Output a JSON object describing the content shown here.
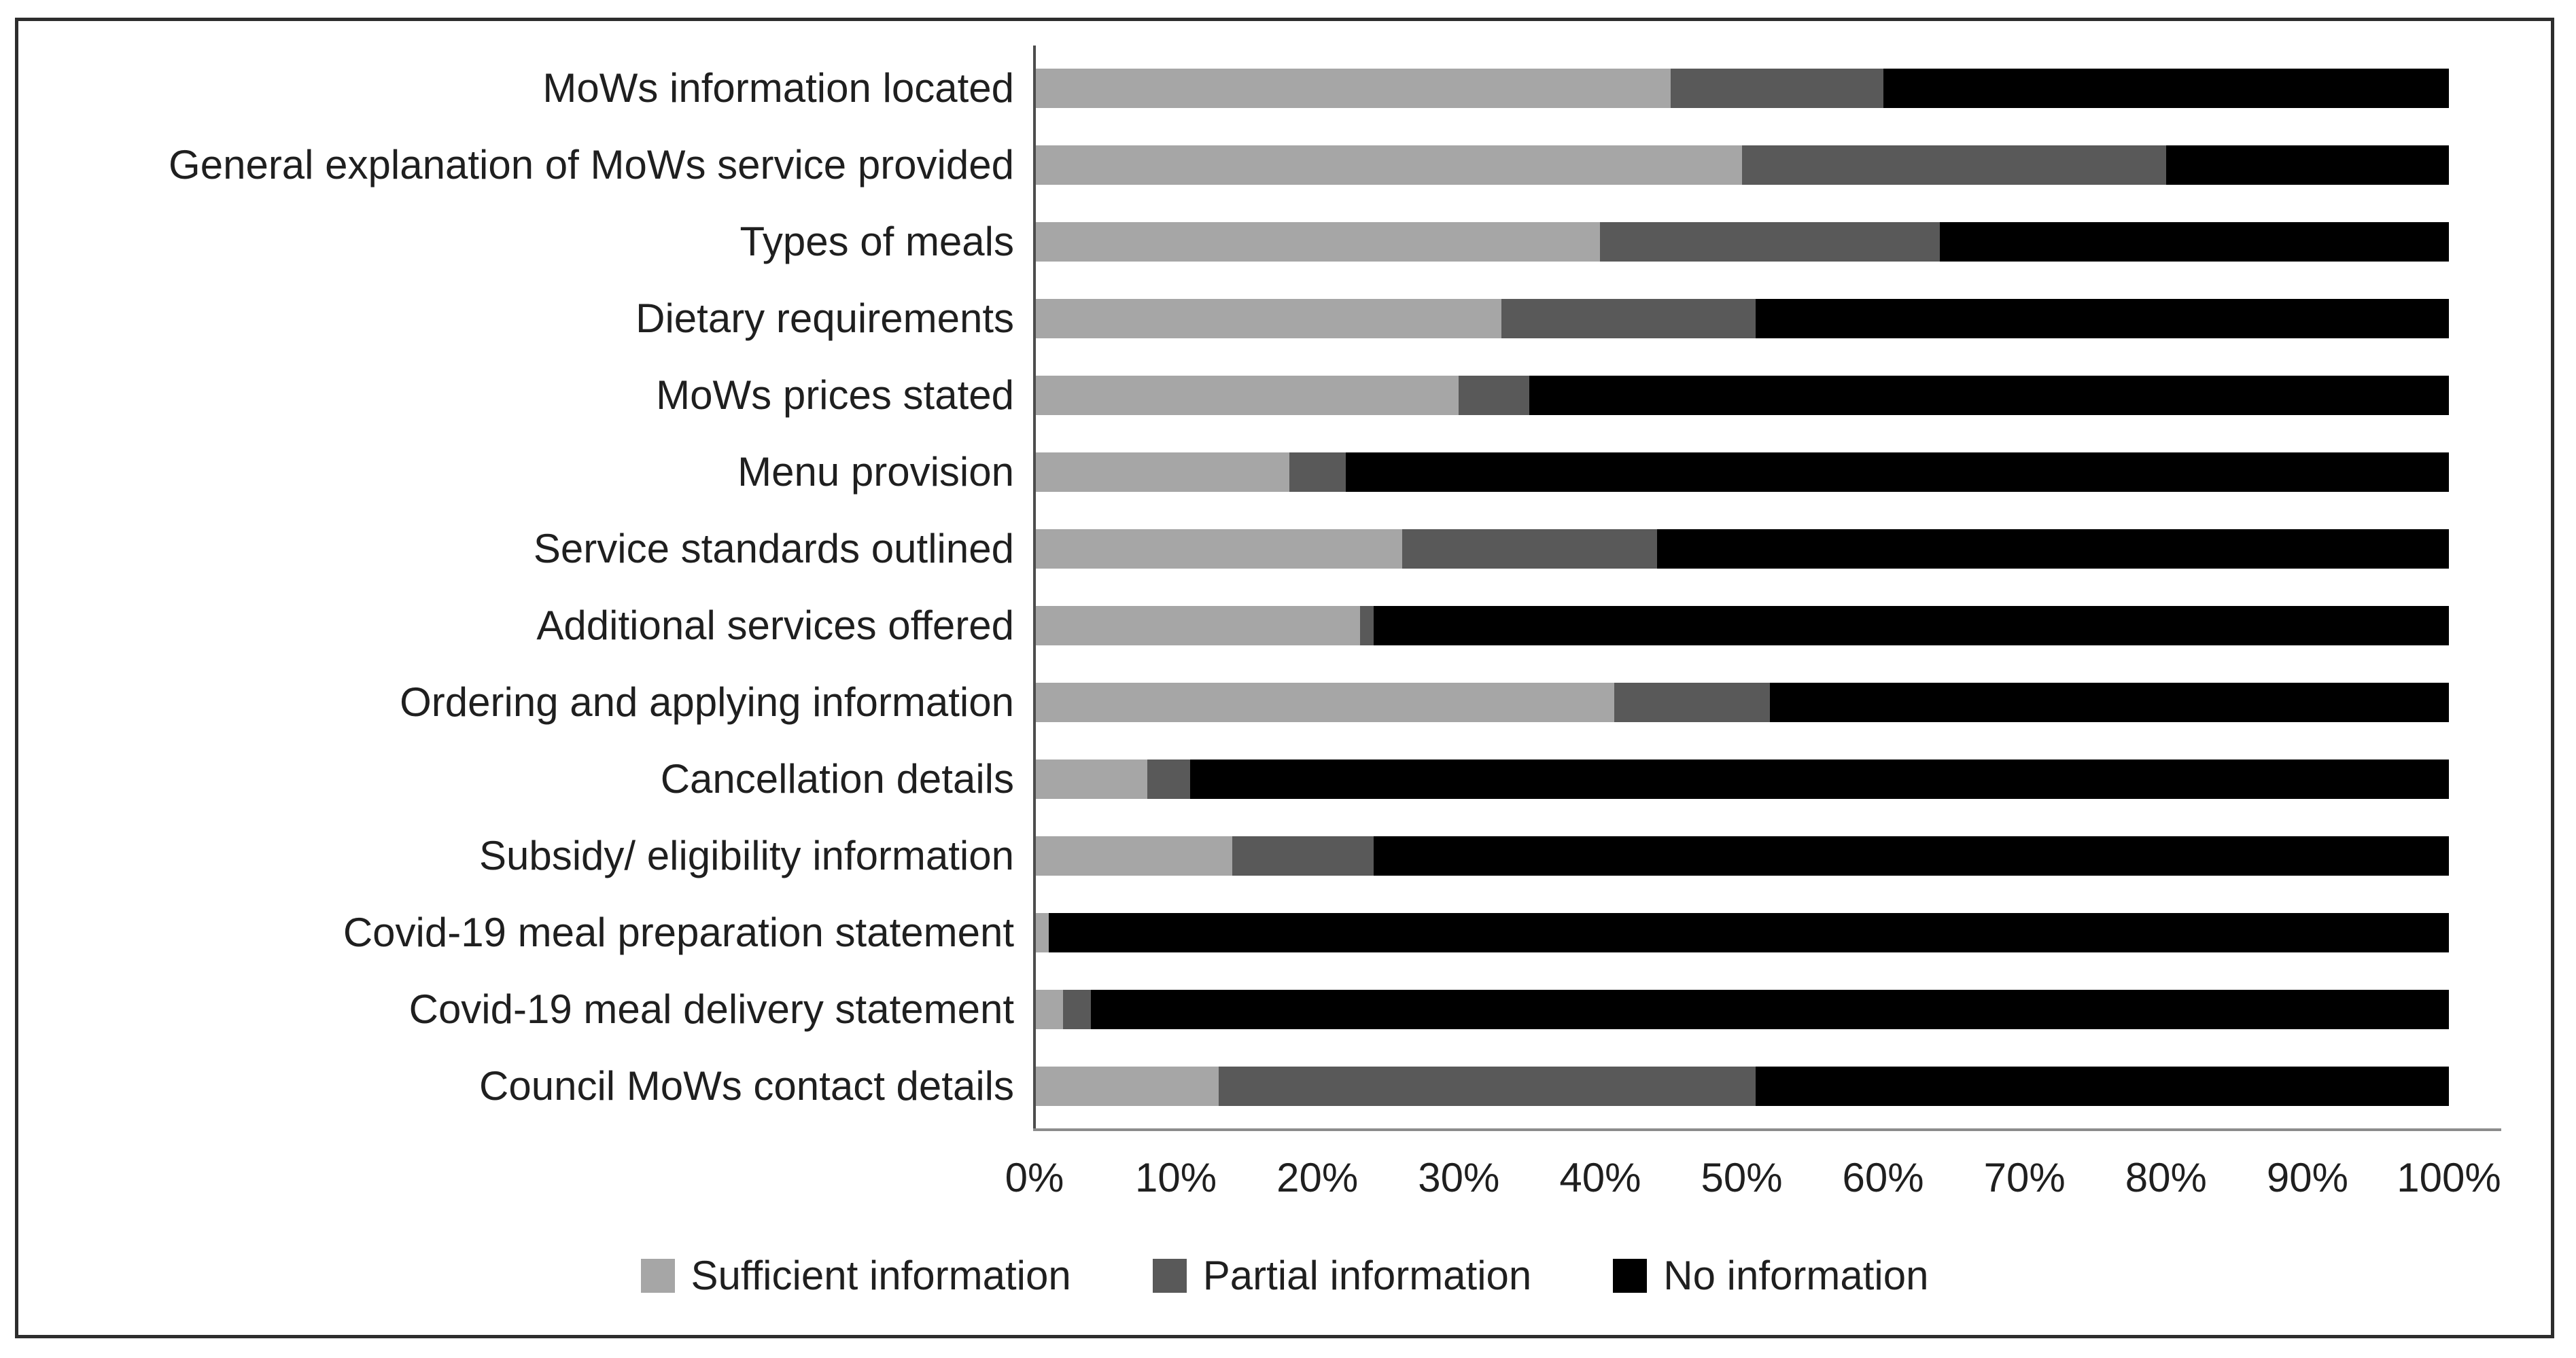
{
  "figure": {
    "background": "#ffffff",
    "border_color": "#2d2d2d",
    "text_color": "#1f1f1f"
  },
  "chart_data": {
    "type": "bar",
    "orientation": "horizontal",
    "stacked": true,
    "stacked_total": 100,
    "title": "",
    "xlabel": "",
    "ylabel": "",
    "grid": false,
    "x_axis": {
      "min": 0,
      "max": 100,
      "tick_step": 10,
      "tick_labels": [
        "0%",
        "10%",
        "20%",
        "30%",
        "40%",
        "50%",
        "60%",
        "70%",
        "80%",
        "90%",
        "100%"
      ]
    },
    "axis_lines": {
      "value_axis_color": "#4d4d4d",
      "category_axis_color": "#8c8c8c"
    },
    "categories": [
      "MoWs information located",
      "General explanation of MoWs service provided",
      "Types of meals",
      "Dietary requirements",
      "MoWs prices stated",
      "Menu provision",
      "Service standards outlined",
      "Additional services offered",
      "Ordering and applying information",
      "Cancellation details",
      "Subsidy/ eligibility information",
      "Covid-19 meal preparation statement",
      "Covid-19 meal delivery statement",
      "Council MoWs contact details"
    ],
    "series": [
      {
        "name": "Sufficient information",
        "color": "#a6a6a6",
        "values": [
          45,
          50,
          40,
          33,
          30,
          18,
          26,
          23,
          41,
          8,
          14,
          1,
          2,
          13
        ]
      },
      {
        "name": "Partial information",
        "color": "#595959",
        "values": [
          15,
          30,
          24,
          18,
          5,
          4,
          18,
          1,
          11,
          3,
          10,
          0,
          2,
          38
        ]
      },
      {
        "name": "No information",
        "color": "#000000",
        "values": [
          40,
          20,
          36,
          49,
          65,
          78,
          56,
          76,
          48,
          89,
          76,
          99,
          96,
          49
        ]
      }
    ],
    "legend": {
      "position": "bottom",
      "entries": [
        "Sufficient information",
        "Partial information",
        "No information"
      ]
    }
  }
}
